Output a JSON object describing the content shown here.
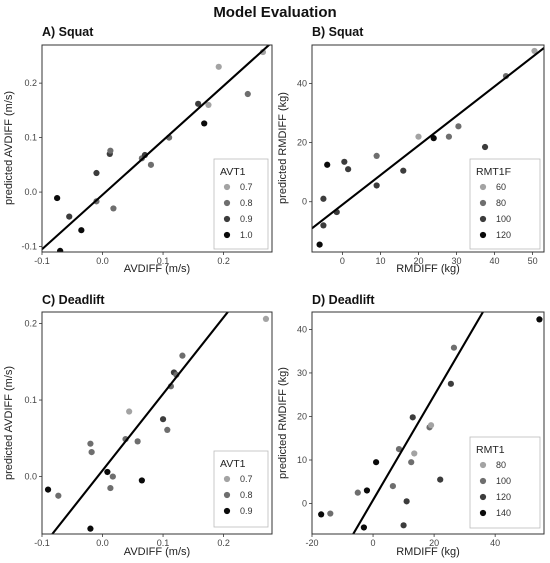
{
  "title": "Model Evaluation",
  "chart_data": [
    {
      "type": "scatter",
      "title": "A) Squat",
      "xlabel": "AVDIFF (m/s)",
      "ylabel": "predicted AVDIFF (m/s)",
      "xlim": [
        -0.1,
        0.28
      ],
      "ylim": [
        -0.11,
        0.27
      ],
      "xticks": [
        -0.1,
        0.0,
        0.1,
        0.2
      ],
      "xtick_labels": [
        "-0.1",
        "0.0",
        "0.1",
        "0.2"
      ],
      "yticks": [
        -0.1,
        0.0,
        0.1,
        0.2
      ],
      "yticks_labels": [
        "-0.1",
        "0.0",
        "0.1",
        "0.2"
      ],
      "fit_line": [
        [
          -0.1,
          -0.105
        ],
        [
          0.28,
          0.275
        ]
      ],
      "legend": {
        "title": "AVT1",
        "position": "bottom-right",
        "entries": [
          {
            "label": "0.7",
            "color": "#a3a3a3"
          },
          {
            "label": "0.8",
            "color": "#6e6e6e"
          },
          {
            "label": "0.9",
            "color": "#3c3c3c"
          },
          {
            "label": "1.0",
            "color": "#0a0a0a"
          }
        ]
      },
      "points": [
        {
          "x": -0.07,
          "y": -0.108,
          "color": "#0a0a0a"
        },
        {
          "x": -0.075,
          "y": -0.011,
          "color": "#0a0a0a"
        },
        {
          "x": -0.055,
          "y": -0.045,
          "color": "#3c3c3c"
        },
        {
          "x": -0.035,
          "y": -0.07,
          "color": "#0a0a0a"
        },
        {
          "x": -0.01,
          "y": 0.035,
          "color": "#3c3c3c"
        },
        {
          "x": -0.01,
          "y": -0.017,
          "color": "#6e6e6e"
        },
        {
          "x": 0.012,
          "y": 0.07,
          "color": "#3c3c3c"
        },
        {
          "x": 0.013,
          "y": 0.076,
          "color": "#6e6e6e"
        },
        {
          "x": 0.018,
          "y": -0.03,
          "color": "#6e6e6e"
        },
        {
          "x": 0.065,
          "y": 0.062,
          "color": "#6e6e6e"
        },
        {
          "x": 0.07,
          "y": 0.068,
          "color": "#3c3c3c"
        },
        {
          "x": 0.08,
          "y": 0.05,
          "color": "#6e6e6e"
        },
        {
          "x": 0.11,
          "y": 0.1,
          "color": "#6e6e6e"
        },
        {
          "x": 0.158,
          "y": 0.162,
          "color": "#3c3c3c"
        },
        {
          "x": 0.168,
          "y": 0.126,
          "color": "#0a0a0a"
        },
        {
          "x": 0.175,
          "y": 0.16,
          "color": "#a3a3a3"
        },
        {
          "x": 0.192,
          "y": 0.23,
          "color": "#a3a3a3"
        },
        {
          "x": 0.24,
          "y": 0.18,
          "color": "#6e6e6e"
        },
        {
          "x": 0.265,
          "y": 0.257,
          "color": "#a3a3a3"
        }
      ]
    },
    {
      "type": "scatter",
      "title": "B) Squat",
      "xlabel": "RMDIFF (kg)",
      "ylabel": "predicted RMDIFF (kg)",
      "xlim": [
        -8,
        53
      ],
      "ylim": [
        -17,
        53
      ],
      "xticks": [
        0,
        10,
        20,
        30,
        40,
        50
      ],
      "xtick_labels": [
        "0",
        "10",
        "20",
        "30",
        "40",
        "50"
      ],
      "yticks": [
        0,
        20,
        40
      ],
      "ytick_labels": [
        "0",
        "20",
        "40"
      ],
      "fit_line": [
        [
          -8,
          -9
        ],
        [
          53,
          52
        ]
      ],
      "legend": {
        "title": "RMT1F",
        "position": "bottom-right",
        "entries": [
          {
            "label": "60",
            "color": "#a3a3a3"
          },
          {
            "label": "80",
            "color": "#6e6e6e"
          },
          {
            "label": "100",
            "color": "#3c3c3c"
          },
          {
            "label": "120",
            "color": "#0a0a0a"
          }
        ]
      },
      "points": [
        {
          "x": -6,
          "y": -14.5,
          "color": "#0a0a0a"
        },
        {
          "x": -5,
          "y": -8,
          "color": "#3c3c3c"
        },
        {
          "x": -5,
          "y": 1,
          "color": "#3c3c3c"
        },
        {
          "x": -4,
          "y": 12.5,
          "color": "#0a0a0a"
        },
        {
          "x": -1.5,
          "y": -3.5,
          "color": "#3c3c3c"
        },
        {
          "x": 0.5,
          "y": 13.5,
          "color": "#3c3c3c"
        },
        {
          "x": 1.5,
          "y": 11,
          "color": "#3c3c3c"
        },
        {
          "x": 9,
          "y": 5.5,
          "color": "#3c3c3c"
        },
        {
          "x": 9,
          "y": 15.5,
          "color": "#6e6e6e"
        },
        {
          "x": 16,
          "y": 10.5,
          "color": "#3c3c3c"
        },
        {
          "x": 20,
          "y": 22,
          "color": "#a3a3a3"
        },
        {
          "x": 24,
          "y": 21.5,
          "color": "#0a0a0a"
        },
        {
          "x": 28,
          "y": 22,
          "color": "#6e6e6e"
        },
        {
          "x": 30.5,
          "y": 25.5,
          "color": "#6e6e6e"
        },
        {
          "x": 37.5,
          "y": 18.5,
          "color": "#3c3c3c"
        },
        {
          "x": 43,
          "y": 42.5,
          "color": "#6e6e6e"
        },
        {
          "x": 50.5,
          "y": 51,
          "color": "#a3a3a3"
        }
      ]
    },
    {
      "type": "scatter",
      "title": "C) Deadlift",
      "xlabel": "AVDIFF (m/s)",
      "ylabel": "predicted AVDIFF (m/s)",
      "xlim": [
        -0.1,
        0.28
      ],
      "ylim": [
        -0.075,
        0.215
      ],
      "xticks": [
        -0.1,
        0.0,
        0.1,
        0.2
      ],
      "xtick_labels": [
        "-0.1",
        "0.0",
        "0.1",
        "0.2"
      ],
      "yticks": [
        0.0,
        0.1,
        0.2
      ],
      "ytick_labels": [
        "0.0",
        "0.1",
        "0.2"
      ],
      "fit_line": [
        [
          -0.083,
          -0.075
        ],
        [
          0.213,
          0.221
        ]
      ],
      "legend": {
        "title": "AVT1",
        "position": "bottom-right",
        "entries": [
          {
            "label": "0.7",
            "color": "#a3a3a3"
          },
          {
            "label": "0.8",
            "color": "#6e6e6e"
          },
          {
            "label": "0.9",
            "color": "#0a0a0a"
          }
        ]
      },
      "points": [
        {
          "x": -0.09,
          "y": -0.017,
          "color": "#0a0a0a"
        },
        {
          "x": -0.073,
          "y": -0.025,
          "color": "#6e6e6e"
        },
        {
          "x": -0.02,
          "y": 0.043,
          "color": "#6e6e6e"
        },
        {
          "x": -0.018,
          "y": 0.032,
          "color": "#6e6e6e"
        },
        {
          "x": -0.02,
          "y": -0.068,
          "color": "#0a0a0a"
        },
        {
          "x": 0.008,
          "y": 0.006,
          "color": "#0a0a0a"
        },
        {
          "x": 0.013,
          "y": -0.015,
          "color": "#6e6e6e"
        },
        {
          "x": 0.017,
          "y": 0.0,
          "color": "#6e6e6e"
        },
        {
          "x": 0.038,
          "y": 0.049,
          "color": "#6e6e6e"
        },
        {
          "x": 0.044,
          "y": 0.085,
          "color": "#a3a3a3"
        },
        {
          "x": 0.058,
          "y": 0.046,
          "color": "#6e6e6e"
        },
        {
          "x": 0.065,
          "y": -0.005,
          "color": "#0a0a0a"
        },
        {
          "x": 0.1,
          "y": 0.075,
          "color": "#3c3c3c"
        },
        {
          "x": 0.107,
          "y": 0.061,
          "color": "#6e6e6e"
        },
        {
          "x": 0.113,
          "y": 0.118,
          "color": "#6e6e6e"
        },
        {
          "x": 0.118,
          "y": 0.136,
          "color": "#3c3c3c"
        },
        {
          "x": 0.122,
          "y": 0.133,
          "color": "#6e6e6e"
        },
        {
          "x": 0.132,
          "y": 0.158,
          "color": "#6e6e6e"
        },
        {
          "x": 0.27,
          "y": 0.206,
          "color": "#a3a3a3"
        }
      ]
    },
    {
      "type": "scatter",
      "title": "D) Deadlift",
      "xlabel": "RMDIFF (kg)",
      "ylabel": "predicted RMDIFF (kg)",
      "xlim": [
        -20,
        56
      ],
      "ylim": [
        -7,
        44
      ],
      "xticks": [
        -20,
        0,
        20,
        40
      ],
      "xtick_labels": [
        "-20",
        "0",
        "20",
        "40"
      ],
      "yticks": [
        0,
        10,
        20,
        30,
        40
      ],
      "ytick_labels": [
        "0",
        "10",
        "20",
        "30",
        "40"
      ],
      "fit_line": [
        [
          -6.5,
          -7
        ],
        [
          36,
          44
        ]
      ],
      "legend": {
        "title": "RMT1",
        "position": "bottom-right",
        "entries": [
          {
            "label": "80",
            "color": "#a3a3a3"
          },
          {
            "label": "100",
            "color": "#6e6e6e"
          },
          {
            "label": "120",
            "color": "#3c3c3c"
          },
          {
            "label": "140",
            "color": "#0a0a0a"
          }
        ]
      },
      "points": [
        {
          "x": -17,
          "y": -2.5,
          "color": "#0a0a0a"
        },
        {
          "x": -14,
          "y": -2.3,
          "color": "#6e6e6e"
        },
        {
          "x": -5,
          "y": 2.5,
          "color": "#6e6e6e"
        },
        {
          "x": -3,
          "y": -5.5,
          "color": "#0a0a0a"
        },
        {
          "x": -2,
          "y": 3,
          "color": "#0a0a0a"
        },
        {
          "x": 1,
          "y": 9.5,
          "color": "#0a0a0a"
        },
        {
          "x": 6.5,
          "y": 4,
          "color": "#6e6e6e"
        },
        {
          "x": 8.5,
          "y": 12.5,
          "color": "#6e6e6e"
        },
        {
          "x": 10,
          "y": -5,
          "color": "#3c3c3c"
        },
        {
          "x": 11,
          "y": 0.5,
          "color": "#3c3c3c"
        },
        {
          "x": 12.5,
          "y": 9.5,
          "color": "#6e6e6e"
        },
        {
          "x": 13,
          "y": 19.8,
          "color": "#3c3c3c"
        },
        {
          "x": 13.5,
          "y": 11.5,
          "color": "#a3a3a3"
        },
        {
          "x": 18.5,
          "y": 17.5,
          "color": "#6e6e6e"
        },
        {
          "x": 19,
          "y": 18,
          "color": "#a3a3a3"
        },
        {
          "x": 22,
          "y": 5.5,
          "color": "#3c3c3c"
        },
        {
          "x": 25.5,
          "y": 27.5,
          "color": "#3c3c3c"
        },
        {
          "x": 26.5,
          "y": 35.8,
          "color": "#6e6e6e"
        },
        {
          "x": 54.5,
          "y": 42.3,
          "color": "#0a0a0a"
        }
      ]
    }
  ]
}
